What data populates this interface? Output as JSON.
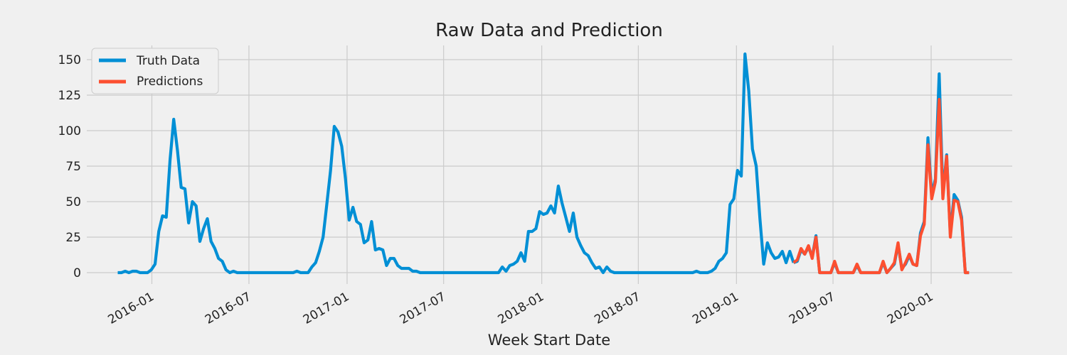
{
  "chart_data": {
    "type": "line",
    "title": "Raw Data and Prediction",
    "xlabel": "Week Start Date",
    "ylabel": "",
    "x_range": [
      "2015-09-01",
      "2020-06-01"
    ],
    "ylim": [
      -8,
      160
    ],
    "y_ticks": [
      0,
      25,
      50,
      75,
      100,
      125,
      150
    ],
    "x_ticks": [
      "2016-01",
      "2016-07",
      "2017-01",
      "2017-07",
      "2018-01",
      "2018-07",
      "2019-01",
      "2019-07",
      "2020-01"
    ],
    "grid": true,
    "legend": {
      "placement": "top-left",
      "entries": [
        "Truth Data",
        "Predictions"
      ]
    },
    "colors": {
      "Truth Data": "#008fd5",
      "Predictions": "#fc4f30",
      "background": "#f0f0f0",
      "grid": "#cbcbcb"
    },
    "series": [
      {
        "name": "Truth Data",
        "points": [
          [
            "2015-10-29",
            0
          ],
          [
            "2015-11-05",
            0
          ],
          [
            "2015-11-12",
            1
          ],
          [
            "2015-11-19",
            0
          ],
          [
            "2015-11-26",
            1
          ],
          [
            "2015-12-03",
            1
          ],
          [
            "2015-12-10",
            0
          ],
          [
            "2015-12-17",
            0
          ],
          [
            "2015-12-24",
            0
          ],
          [
            "2015-12-31",
            2
          ],
          [
            "2016-01-07",
            6
          ],
          [
            "2016-01-14",
            29
          ],
          [
            "2016-01-21",
            40
          ],
          [
            "2016-01-28",
            39
          ],
          [
            "2016-02-04",
            79
          ],
          [
            "2016-02-11",
            108
          ],
          [
            "2016-02-18",
            86
          ],
          [
            "2016-02-25",
            60
          ],
          [
            "2016-03-03",
            59
          ],
          [
            "2016-03-10",
            35
          ],
          [
            "2016-03-17",
            50
          ],
          [
            "2016-03-24",
            47
          ],
          [
            "2016-03-31",
            22
          ],
          [
            "2016-04-07",
            31
          ],
          [
            "2016-04-14",
            38
          ],
          [
            "2016-04-21",
            22
          ],
          [
            "2016-04-28",
            17
          ],
          [
            "2016-05-05",
            10
          ],
          [
            "2016-05-12",
            8
          ],
          [
            "2016-05-19",
            2
          ],
          [
            "2016-05-26",
            0
          ],
          [
            "2016-06-02",
            1
          ],
          [
            "2016-06-09",
            0
          ],
          [
            "2016-06-16",
            0
          ],
          [
            "2016-06-23",
            0
          ],
          [
            "2016-09-22",
            0
          ],
          [
            "2016-09-29",
            1
          ],
          [
            "2016-10-06",
            0
          ],
          [
            "2016-10-13",
            0
          ],
          [
            "2016-10-20",
            0
          ],
          [
            "2016-10-27",
            4
          ],
          [
            "2016-11-03",
            7
          ],
          [
            "2016-11-10",
            15
          ],
          [
            "2016-11-17",
            25
          ],
          [
            "2016-11-24",
            48
          ],
          [
            "2016-12-01",
            72
          ],
          [
            "2016-12-08",
            103
          ],
          [
            "2016-12-15",
            99
          ],
          [
            "2016-12-22",
            89
          ],
          [
            "2016-12-29",
            66
          ],
          [
            "2017-01-05",
            37
          ],
          [
            "2017-01-12",
            46
          ],
          [
            "2017-01-19",
            36
          ],
          [
            "2017-01-26",
            34
          ],
          [
            "2017-02-02",
            21
          ],
          [
            "2017-02-09",
            23
          ],
          [
            "2017-02-16",
            36
          ],
          [
            "2017-02-23",
            16
          ],
          [
            "2017-03-02",
            17
          ],
          [
            "2017-03-09",
            16
          ],
          [
            "2017-03-16",
            5
          ],
          [
            "2017-03-23",
            10
          ],
          [
            "2017-03-30",
            10
          ],
          [
            "2017-04-06",
            5
          ],
          [
            "2017-04-13",
            3
          ],
          [
            "2017-04-20",
            3
          ],
          [
            "2017-04-27",
            3
          ],
          [
            "2017-05-04",
            1
          ],
          [
            "2017-05-11",
            1
          ],
          [
            "2017-05-18",
            0
          ],
          [
            "2017-05-25",
            0
          ],
          [
            "2017-10-12",
            0
          ],
          [
            "2017-10-19",
            4
          ],
          [
            "2017-10-26",
            1
          ],
          [
            "2017-11-02",
            5
          ],
          [
            "2017-11-09",
            6
          ],
          [
            "2017-11-16",
            8
          ],
          [
            "2017-11-23",
            14
          ],
          [
            "2017-11-30",
            8
          ],
          [
            "2017-12-07",
            29
          ],
          [
            "2017-12-14",
            29
          ],
          [
            "2017-12-21",
            31
          ],
          [
            "2017-12-28",
            43
          ],
          [
            "2018-01-04",
            41
          ],
          [
            "2018-01-11",
            42
          ],
          [
            "2018-01-18",
            47
          ],
          [
            "2018-01-25",
            42
          ],
          [
            "2018-02-01",
            61
          ],
          [
            "2018-02-08",
            49
          ],
          [
            "2018-02-15",
            39
          ],
          [
            "2018-02-22",
            29
          ],
          [
            "2018-03-01",
            42
          ],
          [
            "2018-03-08",
            25
          ],
          [
            "2018-03-15",
            19
          ],
          [
            "2018-03-22",
            14
          ],
          [
            "2018-03-29",
            12
          ],
          [
            "2018-04-05",
            7
          ],
          [
            "2018-04-12",
            3
          ],
          [
            "2018-04-19",
            4
          ],
          [
            "2018-04-26",
            0
          ],
          [
            "2018-05-03",
            4
          ],
          [
            "2018-05-10",
            1
          ],
          [
            "2018-05-17",
            0
          ],
          [
            "2018-05-24",
            0
          ],
          [
            "2018-10-11",
            0
          ],
          [
            "2018-10-18",
            1
          ],
          [
            "2018-10-25",
            0
          ],
          [
            "2018-11-01",
            0
          ],
          [
            "2018-11-08",
            0
          ],
          [
            "2018-11-15",
            1
          ],
          [
            "2018-11-22",
            3
          ],
          [
            "2018-11-29",
            8
          ],
          [
            "2018-12-06",
            10
          ],
          [
            "2018-12-13",
            14
          ],
          [
            "2018-12-20",
            48
          ],
          [
            "2018-12-27",
            52
          ],
          [
            "2019-01-03",
            72
          ],
          [
            "2019-01-10",
            68
          ],
          [
            "2019-01-17",
            154
          ],
          [
            "2019-01-24",
            128
          ],
          [
            "2019-01-31",
            87
          ],
          [
            "2019-02-07",
            75
          ],
          [
            "2019-02-14",
            38
          ],
          [
            "2019-02-21",
            6
          ],
          [
            "2019-02-28",
            21
          ],
          [
            "2019-03-07",
            14
          ],
          [
            "2019-03-14",
            10
          ],
          [
            "2019-03-21",
            11
          ],
          [
            "2019-03-28",
            15
          ],
          [
            "2019-04-04",
            7
          ],
          [
            "2019-04-11",
            15
          ],
          [
            "2019-04-18",
            7
          ]
        ]
      },
      {
        "name": "Predictions",
        "points": [
          [
            "2019-04-18",
            7
          ],
          [
            "2019-04-25",
            9
          ],
          [
            "2019-05-02",
            17
          ],
          [
            "2019-05-09",
            13
          ],
          [
            "2019-05-16",
            19
          ],
          [
            "2019-05-23",
            10
          ],
          [
            "2019-05-30",
            25
          ],
          [
            "2019-06-06",
            0
          ],
          [
            "2019-06-13",
            0
          ],
          [
            "2019-06-20",
            0
          ],
          [
            "2019-06-27",
            0
          ],
          [
            "2019-07-04",
            8
          ],
          [
            "2019-07-11",
            0
          ],
          [
            "2019-07-18",
            0
          ],
          [
            "2019-07-25",
            0
          ],
          [
            "2019-08-01",
            0
          ],
          [
            "2019-08-08",
            0
          ],
          [
            "2019-08-15",
            6
          ],
          [
            "2019-08-22",
            0
          ],
          [
            "2019-08-29",
            0
          ],
          [
            "2019-09-05",
            0
          ],
          [
            "2019-09-12",
            0
          ],
          [
            "2019-09-19",
            0
          ],
          [
            "2019-09-26",
            0
          ],
          [
            "2019-10-03",
            8
          ],
          [
            "2019-10-10",
            0
          ],
          [
            "2019-10-17",
            3
          ],
          [
            "2019-10-24",
            7
          ],
          [
            "2019-10-31",
            21
          ],
          [
            "2019-11-07",
            2
          ],
          [
            "2019-11-14",
            7
          ],
          [
            "2019-11-21",
            13
          ],
          [
            "2019-11-28",
            6
          ],
          [
            "2019-12-05",
            5
          ],
          [
            "2019-12-12",
            26
          ],
          [
            "2019-12-19",
            34
          ],
          [
            "2019-12-26",
            90
          ],
          [
            "2020-01-02",
            52
          ],
          [
            "2020-01-09",
            64
          ],
          [
            "2020-01-16",
            122
          ],
          [
            "2020-01-23",
            52
          ],
          [
            "2020-01-30",
            82
          ],
          [
            "2020-02-06",
            25
          ],
          [
            "2020-02-13",
            51
          ],
          [
            "2020-02-20",
            50
          ],
          [
            "2020-02-27",
            37
          ],
          [
            "2020-03-05",
            0
          ],
          [
            "2020-03-12",
            0
          ]
        ]
      },
      {
        "points": [
          [
            "2019-04-18",
            7
          ],
          [
            "2019-04-25",
            8
          ],
          [
            "2019-05-02",
            16
          ],
          [
            "2019-05-09",
            13
          ],
          [
            "2019-05-16",
            18
          ],
          [
            "2019-05-23",
            11
          ],
          [
            "2019-05-30",
            26
          ],
          [
            "2019-06-06",
            0
          ],
          [
            "2019-06-13",
            0
          ],
          [
            "2019-06-20",
            0
          ],
          [
            "2019-06-27",
            0
          ],
          [
            "2019-07-04",
            7
          ],
          [
            "2019-07-11",
            0
          ],
          [
            "2019-07-18",
            0
          ],
          [
            "2019-07-25",
            0
          ],
          [
            "2019-08-01",
            0
          ],
          [
            "2019-08-08",
            0
          ],
          [
            "2019-08-15",
            5
          ],
          [
            "2019-08-22",
            0
          ],
          [
            "2019-08-29",
            0
          ],
          [
            "2019-09-05",
            0
          ],
          [
            "2019-09-12",
            0
          ],
          [
            "2019-09-19",
            0
          ],
          [
            "2019-09-26",
            0
          ],
          [
            "2019-10-03",
            7
          ],
          [
            "2019-10-10",
            0
          ],
          [
            "2019-10-17",
            3
          ],
          [
            "2019-10-24",
            6
          ],
          [
            "2019-10-31",
            20
          ],
          [
            "2019-11-07",
            3
          ],
          [
            "2019-11-14",
            6
          ],
          [
            "2019-11-21",
            12
          ],
          [
            "2019-11-28",
            6
          ],
          [
            "2019-12-05",
            5
          ],
          [
            "2019-12-12",
            28
          ],
          [
            "2019-12-19",
            36
          ],
          [
            "2019-12-26",
            95
          ],
          [
            "2020-01-02",
            55
          ],
          [
            "2020-01-09",
            66
          ],
          [
            "2020-01-16",
            140
          ],
          [
            "2020-01-23",
            55
          ],
          [
            "2020-01-30",
            83
          ],
          [
            "2020-02-06",
            27
          ],
          [
            "2020-02-13",
            55
          ],
          [
            "2020-02-20",
            51
          ],
          [
            "2020-02-27",
            39
          ],
          [
            "2020-03-05",
            0
          ],
          [
            "2020-03-12",
            0
          ]
        ]
      }
    ]
  }
}
